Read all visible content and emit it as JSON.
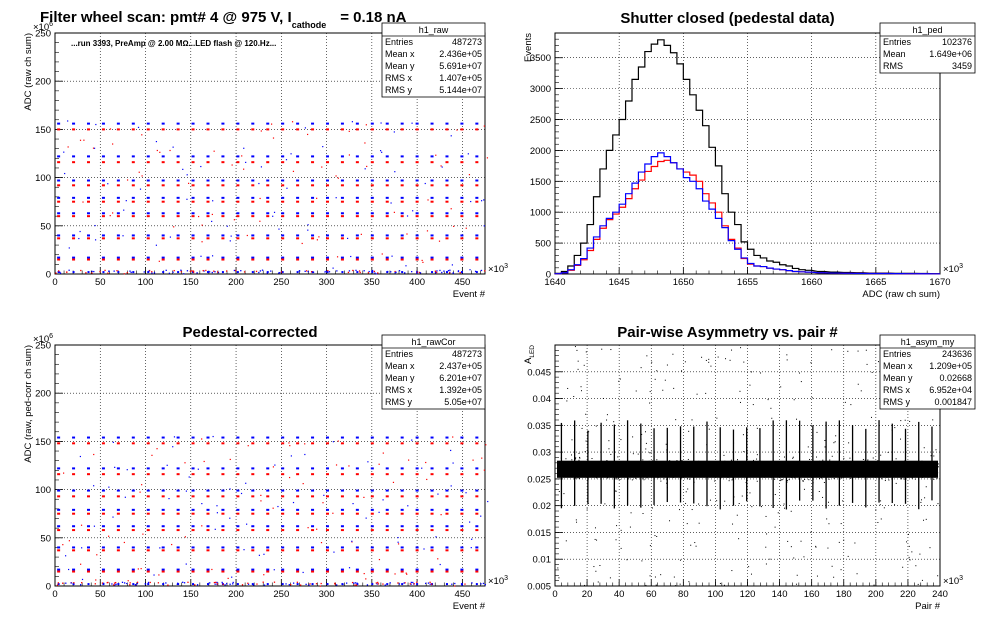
{
  "page_title": {
    "prefix": "Filter wheel scan: pmt#   4 @   975 V, I",
    "subscript": "cathode",
    "suffix": "= 0.18 nA"
  },
  "colors": {
    "red": "#ff0000",
    "blue": "#0000ff",
    "black": "#000000",
    "grid": "#000000"
  },
  "chart_data": [
    {
      "id": "raw",
      "type": "scatter",
      "title": "",
      "annotation": "...run 3393, PreAmp @ 2.00 MΩ...LED flash @  120.Hz...",
      "xlabel": "Event #",
      "ylabel": "ADC (raw ch sum)",
      "x_exponent": "×10",
      "x_exponent_power": "3",
      "y_exponent": "×10",
      "y_exponent_power": "6",
      "xlim": [
        0,
        475
      ],
      "ylim": [
        0,
        250
      ],
      "xticks": [
        0,
        50,
        100,
        150,
        200,
        250,
        300,
        350,
        400,
        450
      ],
      "yticks": [
        0,
        50,
        100,
        150,
        200,
        250
      ],
      "grid": true,
      "stats": {
        "name": "h1_raw",
        "rows": [
          [
            "Entries",
            "487273"
          ],
          [
            "Mean x",
            "2.436e+05"
          ],
          [
            "Mean y",
            "5.691e+07"
          ],
          [
            "RMS x",
            "1.407e+05"
          ],
          [
            "RMS y",
            "5.144e+07"
          ]
        ]
      },
      "levels_blue": [
        156,
        122,
        97,
        79,
        63,
        40,
        17
      ],
      "levels_red": [
        150,
        116,
        92,
        75,
        60,
        37,
        15
      ],
      "period": 16.5,
      "x_start": 4,
      "x_end": 470
    },
    {
      "id": "ped",
      "type": "line",
      "title": "Shutter closed (pedestal data)",
      "xlabel": "ADC (raw ch sum)",
      "ylabel": "Events",
      "x_exponent": "×10",
      "x_exponent_power": "3",
      "xlim": [
        1640,
        1670
      ],
      "ylim": [
        0,
        3900
      ],
      "xticks": [
        1640,
        1645,
        1650,
        1655,
        1660,
        1665,
        1670
      ],
      "yticks": [
        0,
        500,
        1000,
        1500,
        2000,
        2500,
        3000,
        3500
      ],
      "grid": true,
      "stats": {
        "name": "h1_ped",
        "rows": [
          [
            "Entries",
            "102376"
          ],
          [
            "Mean",
            "1.649e+06"
          ],
          [
            "RMS",
            "3459"
          ]
        ]
      },
      "series": [
        {
          "color": "#000000",
          "x": [
            1640.5,
            1641,
            1641.5,
            1642,
            1642.5,
            1643,
            1643.5,
            1644,
            1644.5,
            1645,
            1645.5,
            1646,
            1646.5,
            1647,
            1647.5,
            1648,
            1648.5,
            1649,
            1649.5,
            1650,
            1650.5,
            1651,
            1651.5,
            1652,
            1652.5,
            1653,
            1653.5,
            1654,
            1654.5,
            1655,
            1655.5,
            1656,
            1656.5,
            1657,
            1657.5,
            1658,
            1658.5,
            1659,
            1659.5,
            1660,
            1661,
            1662,
            1663,
            1664,
            1665,
            1666,
            1667,
            1668,
            1669,
            1670
          ],
          "y": [
            10,
            40,
            130,
            300,
            500,
            800,
            1250,
            1700,
            2000,
            2250,
            2500,
            2800,
            3150,
            3350,
            3600,
            3720,
            3790,
            3700,
            3580,
            3400,
            3150,
            2900,
            2650,
            2400,
            2050,
            1750,
            1300,
            1000,
            800,
            520,
            400,
            300,
            260,
            210,
            190,
            150,
            130,
            90,
            70,
            60,
            40,
            30,
            25,
            20,
            15,
            15,
            10,
            10,
            8,
            5
          ]
        },
        {
          "color": "#ff0000",
          "x": [
            1640.5,
            1641,
            1641.5,
            1642,
            1642.5,
            1643,
            1643.5,
            1644,
            1644.5,
            1645,
            1645.5,
            1646,
            1646.5,
            1647,
            1647.5,
            1648,
            1648.5,
            1649,
            1649.5,
            1650,
            1650.5,
            1651,
            1651.5,
            1652,
            1652.5,
            1653,
            1653.5,
            1654,
            1654.5,
            1655,
            1655.5,
            1656,
            1656.5,
            1657,
            1657.5,
            1658,
            1658.5,
            1659,
            1659.5,
            1660,
            1661,
            1662,
            1663,
            1664,
            1665,
            1666,
            1667,
            1668,
            1669,
            1670
          ],
          "y": [
            5,
            20,
            60,
            140,
            230,
            380,
            560,
            740,
            880,
            970,
            1080,
            1220,
            1380,
            1520,
            1660,
            1740,
            1820,
            1840,
            1800,
            1700,
            1650,
            1600,
            1500,
            1300,
            1150,
            1000,
            780,
            560,
            420,
            250,
            160,
            130,
            120,
            95,
            80,
            70,
            55,
            40,
            35,
            30,
            20,
            15,
            12,
            10,
            8,
            8,
            6,
            5,
            4,
            3
          ]
        },
        {
          "color": "#0000ff",
          "x": [
            1640.5,
            1641,
            1641.5,
            1642,
            1642.5,
            1643,
            1643.5,
            1644,
            1644.5,
            1645,
            1645.5,
            1646,
            1646.5,
            1647,
            1647.5,
            1648,
            1648.5,
            1649,
            1649.5,
            1650,
            1650.5,
            1651,
            1651.5,
            1652,
            1652.5,
            1653,
            1653.5,
            1654,
            1654.5,
            1655,
            1655.5,
            1656,
            1656.5,
            1657,
            1657.5,
            1658,
            1658.5,
            1659,
            1659.5,
            1660,
            1661,
            1662,
            1663,
            1664,
            1665,
            1666,
            1667,
            1668,
            1669,
            1670
          ],
          "y": [
            5,
            20,
            70,
            150,
            250,
            420,
            600,
            780,
            900,
            1000,
            1130,
            1300,
            1470,
            1650,
            1780,
            1900,
            1960,
            1900,
            1800,
            1700,
            1560,
            1500,
            1380,
            1180,
            1050,
            900,
            750,
            540,
            400,
            260,
            170,
            130,
            120,
            95,
            80,
            70,
            55,
            40,
            35,
            30,
            20,
            15,
            12,
            10,
            8,
            8,
            6,
            5,
            4,
            3
          ]
        }
      ]
    },
    {
      "id": "rawCor",
      "type": "scatter",
      "title": "Pedestal-corrected",
      "xlabel": "Event #",
      "ylabel": "ADC (raw, ped-corr ch sum)",
      "x_exponent": "×10",
      "x_exponent_power": "3",
      "y_exponent": "×10",
      "y_exponent_power": "6",
      "xlim": [
        0,
        475
      ],
      "ylim": [
        0,
        250
      ],
      "xticks": [
        0,
        50,
        100,
        150,
        200,
        250,
        300,
        350,
        400,
        450
      ],
      "yticks": [
        0,
        50,
        100,
        150,
        200,
        250
      ],
      "grid": true,
      "stats": {
        "name": "h1_rawCor",
        "rows": [
          [
            "Entries",
            "487273"
          ],
          [
            "Mean x",
            "2.437e+05"
          ],
          [
            "Mean y",
            "6.201e+07"
          ],
          [
            "RMS x",
            "1.392e+05"
          ],
          [
            "RMS y",
            "5.05e+07"
          ]
        ]
      },
      "levels_blue": [
        154,
        122,
        99,
        79,
        62,
        40,
        17
      ],
      "levels_red": [
        148,
        116,
        93,
        75,
        58,
        37,
        15
      ],
      "period": 16.5,
      "x_start": 4,
      "x_end": 470
    },
    {
      "id": "asym",
      "type": "scatter",
      "title": "Pair-wise Asymmetry vs. pair #",
      "xlabel": "Pair #",
      "ylabel": "A",
      "ylabel_sub": "LED",
      "x_exponent": "×10",
      "x_exponent_power": "3",
      "xlim": [
        0,
        240
      ],
      "ylim": [
        0.005,
        0.05
      ],
      "xticks": [
        0,
        20,
        40,
        60,
        80,
        100,
        120,
        140,
        160,
        180,
        200,
        220,
        240
      ],
      "yticks": [
        0.005,
        0.01,
        0.015,
        0.02,
        0.025,
        0.03,
        0.035,
        0.04,
        0.045
      ],
      "ytick_labels": [
        "0.005",
        "0.01",
        "0.015",
        "0.02",
        "0.025",
        "0.03",
        "0.035",
        "0.04",
        "0.045"
      ],
      "grid": true,
      "stats": {
        "name": "h1_asym_my",
        "rows": [
          [
            "Entries",
            "243636"
          ],
          [
            "Mean x",
            "1.209e+05"
          ],
          [
            "Mean y",
            "0.02668"
          ],
          [
            "RMS x",
            "6.952e+04"
          ],
          [
            "RMS y",
            "0.001847"
          ]
        ]
      },
      "band_center": 0.0268,
      "band_halfwidth": 0.0016,
      "spike_period": 8.25,
      "spike_start": 4,
      "spike_top": 0.036,
      "spike_bottom": 0.019
    }
  ]
}
